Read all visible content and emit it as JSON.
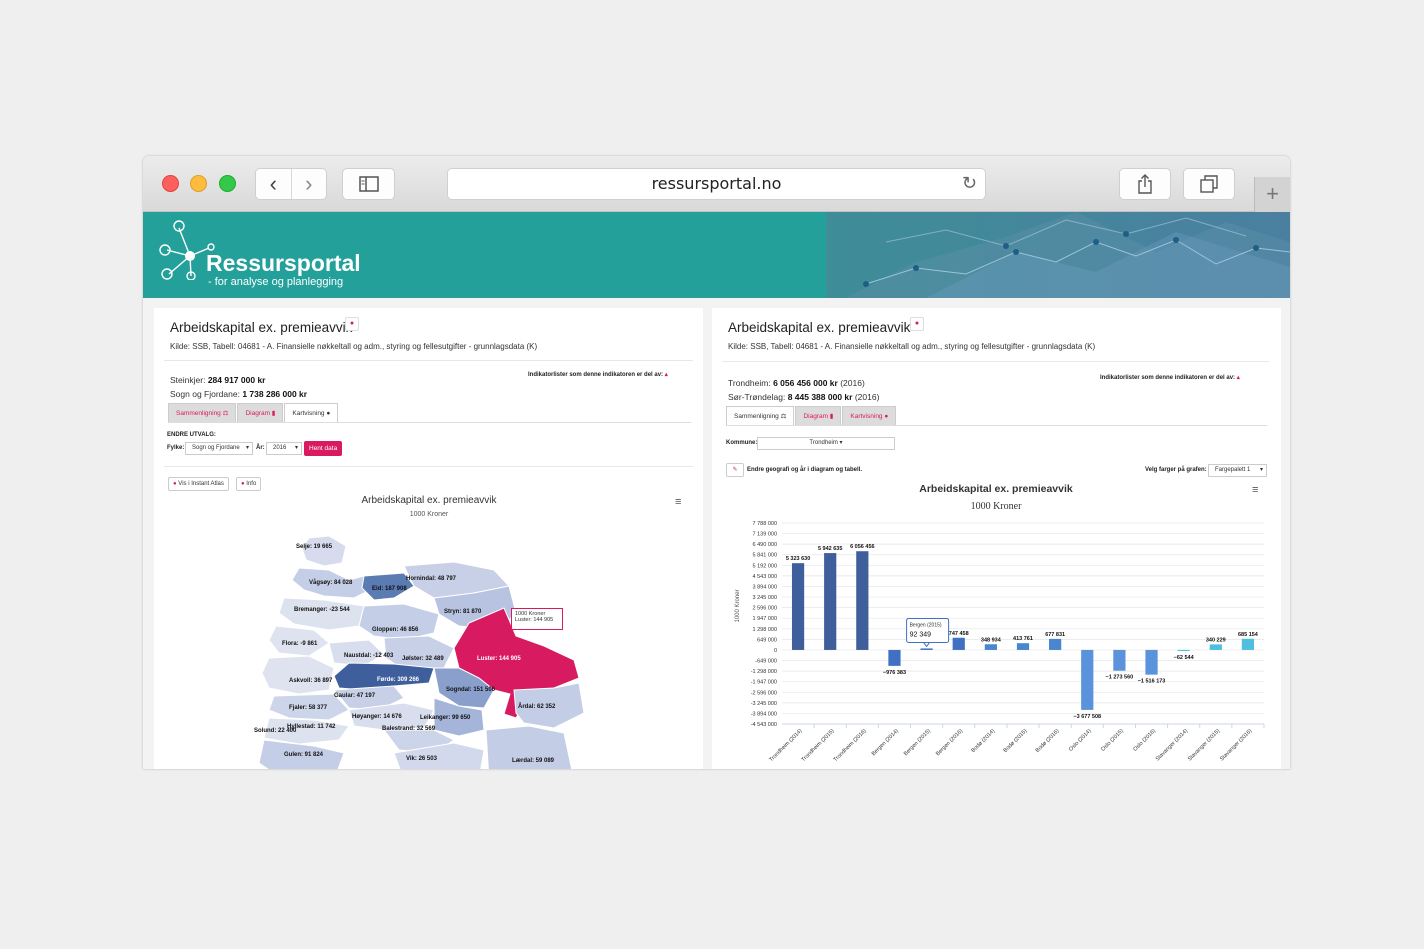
{
  "browser": {
    "url": "ressursportal.no",
    "back_icon": "‹",
    "forward_icon": "›",
    "reload_icon": "↻",
    "new_tab_icon": "+"
  },
  "banner": {
    "brand": "Ressursportal",
    "tagline": "- for analyse og planlegging"
  },
  "left_panel": {
    "title": "Arbeidskapital ex. premieavvik",
    "info_badge": "●",
    "source": "Kilde: SSB, Tabell: 04681 - A. Finansielle nøkkeltall og adm., styring og fellesutgifter - grunnlagsdata (K)",
    "indicator_lists": "Indikatorlister som denne indikatoren er del av:",
    "indicator_toggle": "▴",
    "value1_name": "Steinkjer:",
    "value1": "284 917 000 kr",
    "value2_name": "Sogn og Fjordane:",
    "value2": "1 738 286 000 kr",
    "tabs": [
      "Sammenligning ⚖",
      "Diagram ▮",
      "Kartvisning ●"
    ],
    "change_label": "ENDRE UTVALG:",
    "county_label": "Fylke:",
    "county_value": "Sogn og Fjordane",
    "year_label": "År:",
    "year_value": "2016",
    "fetch_button": "Hent data",
    "atlas_button": "Vis i Instant Atlas",
    "info_button": "Info",
    "chart_title": "Arbeidskapital ex. premieavvik",
    "chart_subtitle": "1000 Kroner",
    "menu_icon": "≡",
    "tooltip_title": "1000 Kroner",
    "tooltip_value": "Luster: 144 905"
  },
  "map_labels": [
    {
      "text": "Selje: 19 665"
    },
    {
      "text": "Vågsøy: 84 028"
    },
    {
      "text": "Eid: 187 908"
    },
    {
      "text": "Hornindal: 48 797"
    },
    {
      "text": "Bremanger: -23 544"
    },
    {
      "text": "Stryn: 81 870"
    },
    {
      "text": "Gloppen: 46 856"
    },
    {
      "text": "Flora: -9 861"
    },
    {
      "text": "Naustdal: -12 403"
    },
    {
      "text": "Jølster: 32 489"
    },
    {
      "text": "Luster: 144 905"
    },
    {
      "text": "Førde: 309 266"
    },
    {
      "text": "Askvoll: 36 897"
    },
    {
      "text": "Gaular: 47 197"
    },
    {
      "text": "Sogndal: 151 506"
    },
    {
      "text": "Fjaler: 58 377"
    },
    {
      "text": "Årdal: 62 352"
    },
    {
      "text": "Høyanger: 14 676"
    },
    {
      "text": "Leikanger: 99 650"
    },
    {
      "text": "Hyllestad: 11 742"
    },
    {
      "text": "Solund: 22 400"
    },
    {
      "text": "Balestrand: 32 569"
    },
    {
      "text": "Gulen: 91 824"
    },
    {
      "text": "Vik: 26 503"
    },
    {
      "text": "Lærdal: 59 089"
    }
  ],
  "right_panel": {
    "title": "Arbeidskapital ex. premieavvik",
    "info_badge": "●",
    "source": "Kilde: SSB, Tabell: 04681 - A. Finansielle nøkkeltall og adm., styring og fellesutgifter - grunnlagsdata (K)",
    "indicator_lists": "Indikatorlister som denne indikatoren er del av:",
    "indicator_toggle": "▴",
    "value1_name": "Trondheim:",
    "value1": "6 056 456 000 kr",
    "value1_year": "(2016)",
    "value2_name": "Sør-Trøndelag:",
    "value2": "8 445 388 000 kr",
    "value2_year": "(2016)",
    "tabs": [
      "Sammenligning ⚖",
      "Diagram ▮",
      "Kartvisning ●"
    ],
    "kommune_label": "Kommune:",
    "kommune_value": "Trondheim ▾",
    "edit_icon": "✎",
    "edit_label": "Endre geografi og år i diagram og tabell.",
    "palette_label": "Velg farger på grafen:",
    "palette_value": "Fargepalett 1",
    "menu_icon": "≡"
  },
  "chart_data": {
    "type": "bar",
    "title": "Arbeidskapital ex. premieavvik",
    "subtitle": "1000 Kroner",
    "ylabel": "1000 Kroner",
    "ylim": [
      -4543000,
      7788000
    ],
    "yticks": [
      "7 788 000",
      "7 139 000",
      "6 490 000",
      "5 841 000",
      "5 192 000",
      "4 543 000",
      "3 894 000",
      "3 245 000",
      "2 596 000",
      "1 947 000",
      "1 298 000",
      "649 000",
      "0",
      "-649 000",
      "-1 298 000",
      "-1 947 000",
      "-2 596 000",
      "-3 245 000",
      "-3 894 000",
      "-4 543 000"
    ],
    "categories": [
      "Trondheim (2014)",
      "Trondheim (2015)",
      "Trondheim (2016)",
      "Bergen (2014)",
      "Bergen (2015)",
      "Bergen (2016)",
      "Bodø (2014)",
      "Bodø (2015)",
      "Bodø (2016)",
      "Oslo (2014)",
      "Oslo (2015)",
      "Oslo (2016)",
      "Stavanger (2014)",
      "Stavanger (2015)",
      "Stavanger (2016)"
    ],
    "values": [
      5323630,
      5942635,
      6056456,
      -976383,
      92349,
      747458,
      348934,
      413761,
      677831,
      -3677508,
      -1273560,
      -1516173,
      -62544,
      340229,
      685154
    ],
    "value_labels": [
      "5 323 630",
      "5 942 635",
      "6 056 456",
      "−976 383",
      "",
      "747 458",
      "348 934",
      "413 761",
      "677 831",
      "−3 677 508",
      "−1 273 560",
      "−1 516 173",
      "−62 544",
      "340 229",
      "685 154"
    ],
    "colors": [
      "#3f5f9c",
      "#3f5f9c",
      "#3f5f9c",
      "#3f70c4",
      "#3f70c4",
      "#3f70c4",
      "#4a86cf",
      "#4a86cf",
      "#4a86cf",
      "#5a93db",
      "#5a93db",
      "#5a93db",
      "#4fbfe0",
      "#4fbfe0",
      "#4fbfe0"
    ],
    "tooltip": {
      "title": "Bergen (2015)",
      "value": "92 349"
    },
    "grid": true,
    "legend": "none"
  }
}
